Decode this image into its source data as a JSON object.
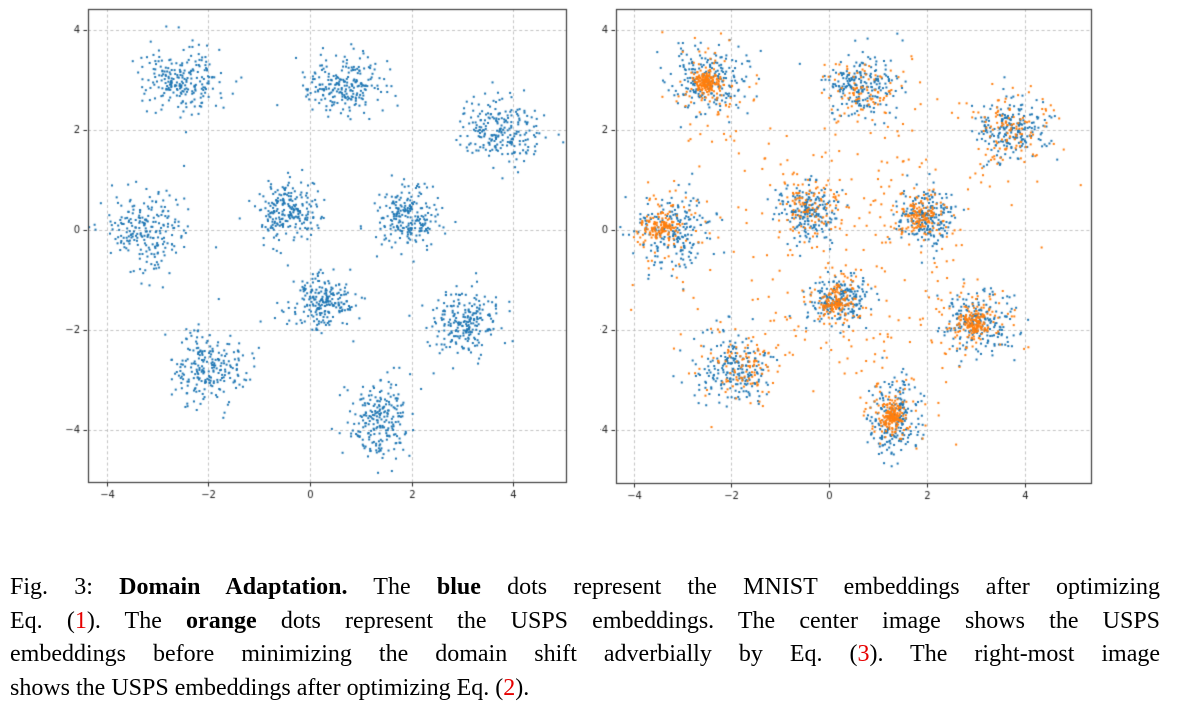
{
  "figure": {
    "kind": "two-panel scatter figure from a research paper",
    "caption": {
      "red_color": "#e60000",
      "lines": [
        {
          "justify": true,
          "segments": [
            {
              "text": "Fig. 3: ",
              "style": "normal"
            },
            {
              "text": "Domain Adaptation.",
              "style": "bold"
            },
            {
              "text": " The ",
              "style": "normal"
            },
            {
              "text": "blue",
              "style": "bold"
            },
            {
              "text": " dots represent the MNIST embeddings after optimizing",
              "style": "normal"
            }
          ]
        },
        {
          "justify": true,
          "segments": [
            {
              "text": "Eq. (",
              "style": "normal"
            },
            {
              "text": "1",
              "style": "red"
            },
            {
              "text": "). The ",
              "style": "normal"
            },
            {
              "text": "orange",
              "style": "bold"
            },
            {
              "text": " dots represent the USPS embeddings. The center image shows the USPS",
              "style": "normal"
            }
          ]
        },
        {
          "justify": true,
          "segments": [
            {
              "text": "embeddings before minimizing the domain shift adverbially by Eq. (",
              "style": "normal"
            },
            {
              "text": "3",
              "style": "red"
            },
            {
              "text": "). The right-most image",
              "style": "normal"
            }
          ]
        },
        {
          "justify": false,
          "segments": [
            {
              "text": "shows the USPS embeddings after optimizing Eq. (",
              "style": "normal"
            },
            {
              "text": "2",
              "style": "red"
            },
            {
              "text": ").",
              "style": "normal"
            }
          ]
        }
      ]
    }
  },
  "chart_data": [
    {
      "panel": "left",
      "type": "scatter",
      "title": "",
      "xlabel": "",
      "ylabel": "",
      "grid": true,
      "grid_style": "dashed",
      "xlim": [
        -4.37,
        5.04
      ],
      "ylim": [
        -5.05,
        4.43
      ],
      "xticks": [
        -4,
        -2,
        0,
        2,
        4
      ],
      "yticks": [
        -4,
        -2,
        0,
        2,
        4
      ],
      "xtick_labels": [
        "−4",
        "−2",
        "0",
        "2",
        "4"
      ],
      "ytick_labels": [
        "−4",
        "−2",
        "0",
        "2",
        "4"
      ],
      "legend": "none",
      "series": [
        {
          "name": "MNIST embeddings",
          "color": "#1f77b4",
          "marker_px": 2,
          "seed": 7,
          "clusters": [
            {
              "cx": -2.5,
              "cy": 3.0,
              "n": 230,
              "sx": 0.38,
              "sy": 0.33
            },
            {
              "cx": 0.65,
              "cy": 2.9,
              "n": 230,
              "sx": 0.36,
              "sy": 0.3
            },
            {
              "cx": 3.75,
              "cy": 2.05,
              "n": 230,
              "sx": 0.4,
              "sy": 0.32
            },
            {
              "cx": -3.2,
              "cy": 0.0,
              "n": 230,
              "sx": 0.4,
              "sy": 0.38
            },
            {
              "cx": -0.45,
              "cy": 0.4,
              "n": 225,
              "sx": 0.3,
              "sy": 0.28
            },
            {
              "cx": 1.95,
              "cy": 0.25,
              "n": 225,
              "sx": 0.32,
              "sy": 0.3
            },
            {
              "cx": 0.25,
              "cy": -1.4,
              "n": 225,
              "sx": 0.32,
              "sy": 0.26
            },
            {
              "cx": 3.05,
              "cy": -1.85,
              "n": 230,
              "sx": 0.36,
              "sy": 0.32
            },
            {
              "cx": -1.95,
              "cy": -2.8,
              "n": 230,
              "sx": 0.38,
              "sy": 0.36
            },
            {
              "cx": 1.35,
              "cy": -3.75,
              "n": 230,
              "sx": 0.3,
              "sy": 0.42
            }
          ]
        }
      ]
    },
    {
      "panel": "right",
      "type": "scatter",
      "title": "",
      "xlabel": "",
      "ylabel": "",
      "grid": true,
      "grid_style": "dashed",
      "xlim": [
        -4.36,
        5.36
      ],
      "ylim": [
        -5.07,
        4.43
      ],
      "xticks": [
        -4,
        -2,
        0,
        2,
        4
      ],
      "yticks": [
        -4,
        -2,
        0,
        2,
        4
      ],
      "xtick_labels": [
        "−4",
        "−2",
        "0",
        "2",
        "4"
      ],
      "ytick_labels": [
        "−4",
        "−2",
        "0",
        "2",
        "4"
      ],
      "legend": "none",
      "series": [
        {
          "name": "MNIST embeddings",
          "color": "#1f77b4",
          "marker_px": 2,
          "seed": 11,
          "clusters": [
            {
              "cx": -2.5,
              "cy": 3.0,
              "n": 215,
              "sx": 0.38,
              "sy": 0.33
            },
            {
              "cx": 0.65,
              "cy": 2.9,
              "n": 215,
              "sx": 0.36,
              "sy": 0.3
            },
            {
              "cx": 3.75,
              "cy": 2.05,
              "n": 215,
              "sx": 0.4,
              "sy": 0.32
            },
            {
              "cx": -3.2,
              "cy": 0.0,
              "n": 215,
              "sx": 0.4,
              "sy": 0.38
            },
            {
              "cx": -0.45,
              "cy": 0.4,
              "n": 210,
              "sx": 0.3,
              "sy": 0.28
            },
            {
              "cx": 1.95,
              "cy": 0.25,
              "n": 210,
              "sx": 0.32,
              "sy": 0.3
            },
            {
              "cx": 0.25,
              "cy": -1.4,
              "n": 210,
              "sx": 0.32,
              "sy": 0.26
            },
            {
              "cx": 3.05,
              "cy": -1.85,
              "n": 215,
              "sx": 0.36,
              "sy": 0.32
            },
            {
              "cx": -1.95,
              "cy": -2.8,
              "n": 215,
              "sx": 0.38,
              "sy": 0.36
            },
            {
              "cx": 1.35,
              "cy": -3.75,
              "n": 215,
              "sx": 0.3,
              "sy": 0.42
            }
          ]
        },
        {
          "name": "USPS embeddings",
          "color": "#ff7f0e",
          "marker_px": 2,
          "seed": 23,
          "clusters": [
            {
              "cx": -2.52,
              "cy": 2.95,
              "n": 160,
              "sx": 0.13,
              "sy": 0.12
            },
            {
              "cx": 0.6,
              "cy": 2.78,
              "n": 30,
              "sx": 0.28,
              "sy": 0.24
            },
            {
              "cx": 3.78,
              "cy": 2.05,
              "n": 45,
              "sx": 0.3,
              "sy": 0.27
            },
            {
              "cx": -3.45,
              "cy": 0.03,
              "n": 110,
              "sx": 0.17,
              "sy": 0.14
            },
            {
              "cx": -0.5,
              "cy": 0.5,
              "n": 45,
              "sx": 0.22,
              "sy": 0.2
            },
            {
              "cx": 1.85,
              "cy": 0.3,
              "n": 100,
              "sx": 0.18,
              "sy": 0.15
            },
            {
              "cx": 0.15,
              "cy": -1.45,
              "n": 100,
              "sx": 0.17,
              "sy": 0.14
            },
            {
              "cx": 2.95,
              "cy": -1.86,
              "n": 130,
              "sx": 0.16,
              "sy": 0.14
            },
            {
              "cx": -1.8,
              "cy": -2.75,
              "n": 50,
              "sx": 0.3,
              "sy": 0.28
            },
            {
              "cx": 1.3,
              "cy": -3.75,
              "n": 150,
              "sx": 0.11,
              "sy": 0.14
            },
            {
              "cx": -2.5,
              "cy": 2.92,
              "n": 55,
              "sx": 0.5,
              "sy": 0.46
            },
            {
              "cx": 0.6,
              "cy": 2.75,
              "n": 55,
              "sx": 0.58,
              "sy": 0.52
            },
            {
              "cx": 3.78,
              "cy": 2.0,
              "n": 60,
              "sx": 0.58,
              "sy": 0.52
            },
            {
              "cx": -3.4,
              "cy": 0.0,
              "n": 60,
              "sx": 0.5,
              "sy": 0.48
            },
            {
              "cx": -0.5,
              "cy": 0.45,
              "n": 50,
              "sx": 0.5,
              "sy": 0.46
            },
            {
              "cx": 1.85,
              "cy": 0.3,
              "n": 55,
              "sx": 0.5,
              "sy": 0.46
            },
            {
              "cx": 0.2,
              "cy": -1.42,
              "n": 60,
              "sx": 0.5,
              "sy": 0.46
            },
            {
              "cx": 2.93,
              "cy": -1.88,
              "n": 55,
              "sx": 0.5,
              "sy": 0.46
            },
            {
              "cx": -1.78,
              "cy": -2.72,
              "n": 55,
              "sx": 0.58,
              "sy": 0.52
            },
            {
              "cx": 1.32,
              "cy": -3.73,
              "n": 50,
              "sx": 0.42,
              "sy": 0.44
            }
          ],
          "bridges": {
            "n": 280,
            "jitter": 0.22,
            "between": [
              [
                -2.5,
                2.95
              ],
              [
                0.6,
                2.8
              ],
              [
                3.78,
                2.05
              ],
              [
                -3.45,
                0.03
              ],
              [
                -0.5,
                0.5
              ],
              [
                1.85,
                0.3
              ],
              [
                0.15,
                -1.45
              ],
              [
                2.95,
                -1.86
              ],
              [
                -1.8,
                -2.75
              ],
              [
                1.3,
                -3.75
              ]
            ]
          },
          "extra_points": [
            [
              5.15,
              0.9
            ],
            [
              4.35,
              -0.35
            ],
            [
              4.6,
              2.4
            ],
            [
              -4.05,
              -1.6
            ],
            [
              2.6,
              -4.3
            ]
          ]
        }
      ]
    }
  ]
}
